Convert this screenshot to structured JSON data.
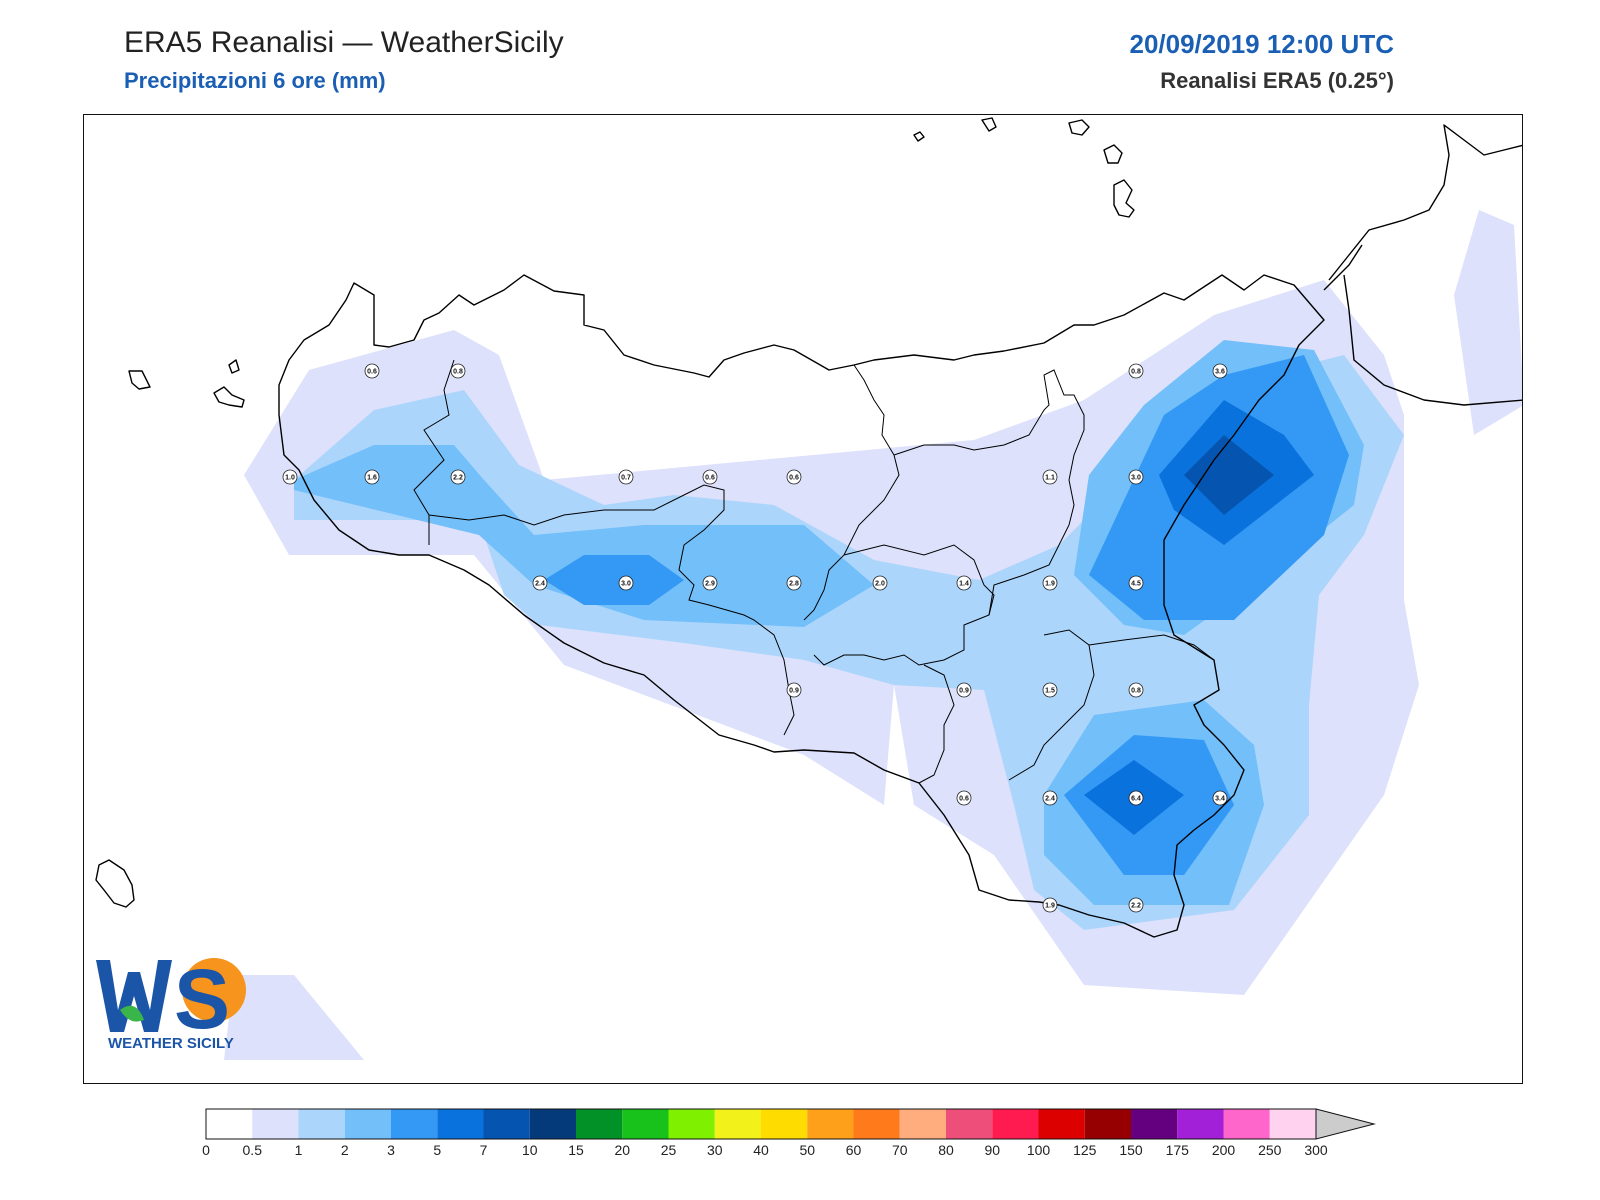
{
  "header": {
    "title": "ERA5 Reanalisi — WeatherSicily",
    "subtitle": "Precipitazioni 6 ore (mm)",
    "datetime": "20/09/2019 12:00 UTC",
    "source": "Reanalisi ERA5 (0.25°)"
  },
  "logo": {
    "mark": "WS",
    "text": "WEATHER SICILY"
  },
  "colors": {
    "title_blue": "#1a5fb4",
    "coast": "#000000",
    "frame": "#111111"
  },
  "legend": {
    "ticks": [
      "0",
      "0.5",
      "1",
      "2",
      "3",
      "5",
      "7",
      "10",
      "15",
      "20",
      "25",
      "30",
      "40",
      "50",
      "60",
      "70",
      "80",
      "90",
      "100",
      "125",
      "150",
      "175",
      "200",
      "250",
      "300"
    ],
    "colors": [
      "#ffffff",
      "#dde1fb",
      "#acd5fc",
      "#73bff9",
      "#3399f5",
      "#0a72dc",
      "#0554b0",
      "#053a7a",
      "#029126",
      "#18c21a",
      "#7ff000",
      "#f2f21a",
      "#ffdc00",
      "#ffa01a",
      "#ff7a1a",
      "#ffac7f",
      "#ee4f7a",
      "#ff1a50",
      "#dd0000",
      "#960000",
      "#640080",
      "#a220d8",
      "#ff66cc",
      "#ffd2f0",
      "#cccccc"
    ]
  },
  "stations": [
    {
      "label": "0.6",
      "color": "#dde1fb"
    },
    {
      "label": "0.8",
      "color": "#dde1fb"
    },
    {
      "label": "1.0",
      "color": "#acd5fc"
    },
    {
      "label": "1.6",
      "color": "#acd5fc"
    },
    {
      "label": "2.2",
      "color": "#73bff9"
    },
    {
      "label": "0.7",
      "color": "#dde1fb"
    },
    {
      "label": "0.6",
      "color": "#dde1fb"
    },
    {
      "label": "0.6",
      "color": "#dde1fb"
    },
    {
      "label": "2.4",
      "color": "#73bff9"
    },
    {
      "label": "3.0",
      "color": "#3399f5"
    },
    {
      "label": "2.9",
      "color": "#73bff9"
    },
    {
      "label": "2.8",
      "color": "#73bff9"
    },
    {
      "label": "2.0",
      "color": "#acd5fc"
    },
    {
      "label": "1.4",
      "color": "#acd5fc"
    },
    {
      "label": "1.9",
      "color": "#acd5fc"
    },
    {
      "label": "4.5",
      "color": "#3399f5"
    },
    {
      "label": "0.8",
      "color": "#dde1fb"
    },
    {
      "label": "3.6",
      "color": "#3399f5"
    },
    {
      "label": "1.1",
      "color": "#acd5fc"
    },
    {
      "label": "3.0",
      "color": "#3399f5"
    },
    {
      "label": "0.9",
      "color": "#dde1fb"
    },
    {
      "label": "0.9",
      "color": "#dde1fb"
    },
    {
      "label": "1.5",
      "color": "#acd5fc"
    },
    {
      "label": "0.8",
      "color": "#dde1fb"
    },
    {
      "label": "0.6",
      "color": "#dde1fb"
    },
    {
      "label": "2.4",
      "color": "#73bff9"
    },
    {
      "label": "6.4",
      "color": "#0a72dc"
    },
    {
      "label": "3.4",
      "color": "#3399f5"
    },
    {
      "label": "1.9",
      "color": "#acd5fc"
    },
    {
      "label": "2.2",
      "color": "#73bff9"
    }
  ]
}
